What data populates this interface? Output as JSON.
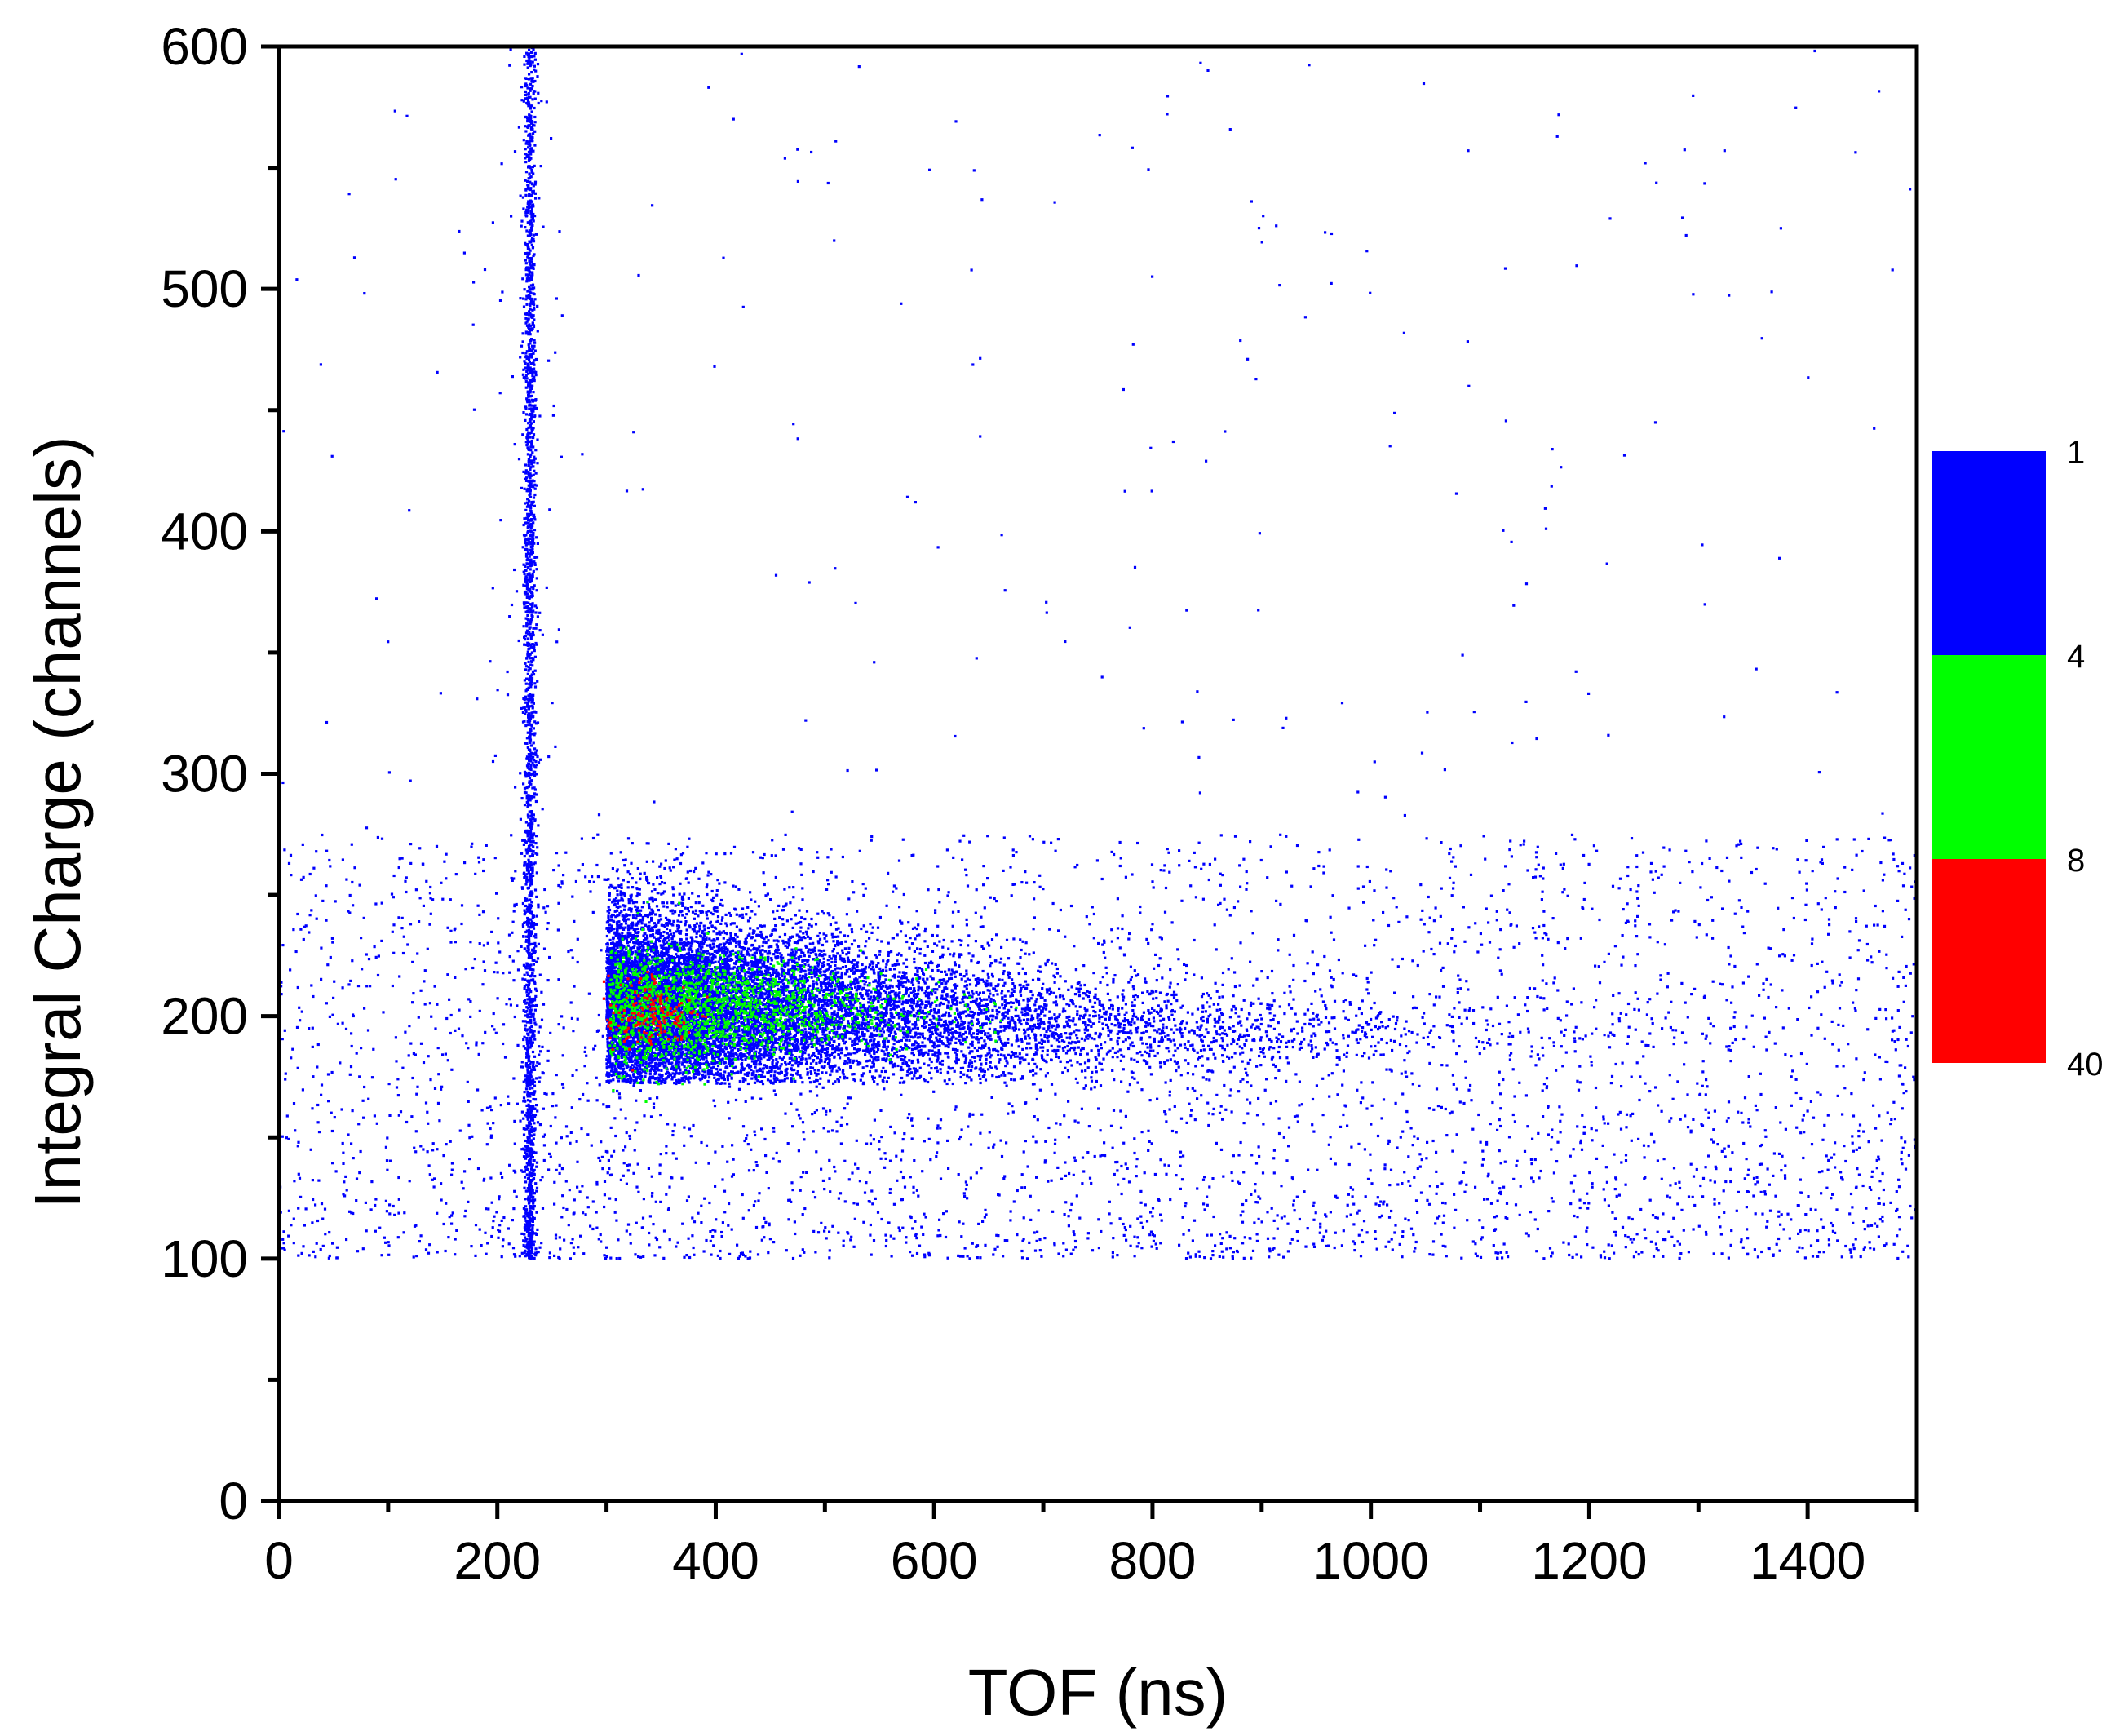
{
  "chart_data": {
    "type": "scatter",
    "title": "",
    "xlabel": "TOF (ns)",
    "ylabel": "Integral Charge (channels)",
    "xlim": [
      0,
      1500
    ],
    "ylim": [
      0,
      600
    ],
    "x_ticks": [
      0,
      200,
      400,
      600,
      800,
      1000,
      1200,
      1400
    ],
    "y_ticks": [
      0,
      100,
      200,
      300,
      400,
      500,
      600
    ],
    "x_minor_step": 100,
    "y_minor_step": 50,
    "grid": false,
    "data_description": "Two-dimensional event density. A narrow vertical gamma-flash band at TOF ≈ 230 ns spans 100–600 channels; a dense neutron cluster starts at TOF ≈ 300 ns around 200 channels and tails off toward higher TOF; sparse background spans 100–300 channels across all TOF.",
    "clusters": [
      {
        "name": "vertical band",
        "x_center": 230,
        "x_width": 6,
        "y_range": [
          100,
          600
        ],
        "count_level": "1-4"
      },
      {
        "name": "main cluster",
        "x_range": [
          300,
          700
        ],
        "y_center": 205,
        "y_range": [
          175,
          265
        ],
        "count_level": "1-40"
      },
      {
        "name": "cluster core",
        "x_center": 340,
        "y_center": 200,
        "count_level": "8-40"
      },
      {
        "name": "tail",
        "x_range": [
          700,
          1100
        ],
        "y_center": 195,
        "count_level": "1"
      },
      {
        "name": "background",
        "x_range": [
          0,
          1500
        ],
        "y_range": [
          100,
          300
        ],
        "count_level": "1"
      }
    ],
    "colorbar": {
      "labels": [
        "1",
        "4",
        "8",
        "40"
      ],
      "bands": [
        {
          "from": 1,
          "to": 4,
          "color": "#0000ff"
        },
        {
          "from": 4,
          "to": 8,
          "color": "#00ff00"
        },
        {
          "from": 8,
          "to": 40,
          "color": "#ff0000"
        }
      ]
    },
    "colors": {
      "low": "#0000ff",
      "mid": "#00ff00",
      "high": "#ff0000"
    }
  }
}
